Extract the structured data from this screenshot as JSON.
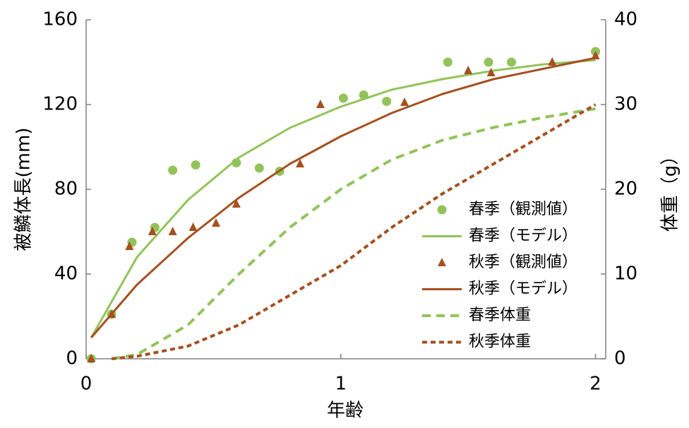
{
  "chart_data": {
    "type": "line",
    "x_label": "年齢",
    "y_label": "被鱗体長(mm)",
    "y2_label": "体重（g）",
    "xlim": [
      0,
      2.04
    ],
    "xticks": [
      0,
      1,
      2
    ],
    "ylim": [
      0,
      160
    ],
    "yticks": [
      0,
      40,
      80,
      120,
      160
    ],
    "y2lim": [
      0,
      40
    ],
    "y2ticks": [
      0,
      10,
      20,
      30,
      40
    ],
    "grid": false,
    "legend": "right",
    "series": [
      {
        "name": "春季（観測値）",
        "color": "#92c35a",
        "style": "marker",
        "marker": "circle",
        "x": [
          0.02,
          0.1,
          0.18,
          0.27,
          0.34,
          0.43,
          0.59,
          0.68,
          0.76,
          1.01,
          1.09,
          1.18,
          1.42,
          1.58,
          1.67,
          2.0
        ],
        "values": [
          0,
          21,
          55,
          62,
          89,
          91.5,
          92.5,
          90,
          88.5,
          123,
          124.5,
          121.5,
          140,
          140,
          140,
          145
        ]
      },
      {
        "name": "春季（モデル）",
        "color": "#92c35a",
        "style": "solid",
        "x": [
          0.02,
          0.2,
          0.4,
          0.6,
          0.8,
          1.0,
          1.2,
          1.4,
          1.6,
          1.8,
          2.0
        ],
        "values": [
          10,
          48,
          75,
          95,
          109,
          119,
          127,
          132,
          136,
          139,
          141
        ]
      },
      {
        "name": "秋季（観測値）",
        "color": "#a5501f",
        "style": "marker",
        "marker": "triangle",
        "x": [
          0.02,
          0.1,
          0.17,
          0.26,
          0.34,
          0.42,
          0.51,
          0.59,
          0.84,
          0.92,
          1.25,
          1.5,
          1.59,
          1.83,
          2.0
        ],
        "values": [
          0,
          21,
          53,
          60,
          60,
          62,
          64,
          73,
          92,
          120,
          121,
          136,
          135,
          140,
          143
        ]
      },
      {
        "name": "秋季（モデル）",
        "color": "#a5501f",
        "style": "solid",
        "x": [
          0.02,
          0.2,
          0.4,
          0.6,
          0.8,
          1.0,
          1.2,
          1.4,
          1.6,
          1.8,
          2.0
        ],
        "values": [
          10,
          35,
          57,
          76,
          92,
          105,
          116,
          125,
          132,
          137,
          142
        ]
      },
      {
        "name": "春季体重",
        "color": "#92c35a",
        "style": "dashed",
        "axis": "y2",
        "x": [
          0.1,
          0.2,
          0.4,
          0.6,
          0.8,
          1.0,
          1.2,
          1.4,
          1.6,
          1.8,
          2.0
        ],
        "values": [
          0,
          0.5,
          4,
          10,
          15.5,
          20,
          23.5,
          25.8,
          27.3,
          28.5,
          29.5
        ]
      },
      {
        "name": "秋季体重",
        "color": "#a5501f",
        "style": "dotted",
        "axis": "y2",
        "x": [
          0.1,
          0.2,
          0.4,
          0.6,
          0.8,
          1.0,
          1.2,
          1.4,
          1.6,
          1.8,
          2.0
        ],
        "values": [
          0,
          0.3,
          1.5,
          4,
          7.5,
          11,
          15.5,
          19.5,
          23,
          26.5,
          30
        ]
      }
    ]
  }
}
